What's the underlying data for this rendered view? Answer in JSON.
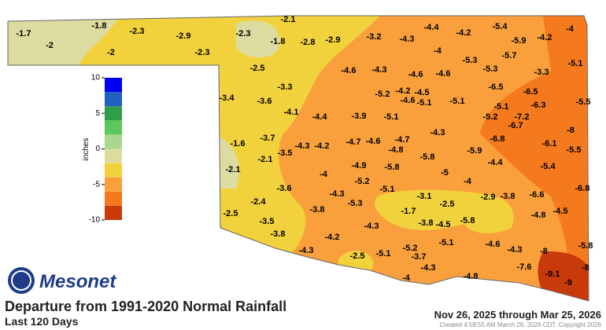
{
  "logo": "Mesonet",
  "title": "Departure from 1991-2020 Normal Rainfall",
  "subtitle": "Last 120 Days",
  "date_range": "Nov 26, 2025 through Mar 25, 2026",
  "created": "Created 4:58:55 AM March 26, 2026 CDT. Copyright 2026",
  "legend": {
    "label": "inches",
    "ylim": [
      10,
      -10
    ],
    "ticks": [
      10,
      5,
      0,
      -5,
      -10
    ],
    "colors": [
      "#0000f0",
      "#2060c0",
      "#2e9e4a",
      "#5cc85c",
      "#a8d890",
      "#dcdca0",
      "#f2d23c",
      "#f9a03c",
      "#f57a1e",
      "#c83a0a"
    ]
  },
  "stations": [
    -1.7,
    -2.0,
    -1.8,
    -2.3,
    -2.0,
    -2.9,
    -2.3,
    -2.3,
    -2.1,
    -1.8,
    -2.8,
    -2.9,
    -3.2,
    -4.3,
    -4.4,
    -4.2,
    -5.4,
    -4.0,
    -5.9,
    -4.2,
    -4.0,
    -5.3,
    -5.7,
    -5.1,
    -2.5,
    -4.6,
    -4.3,
    -4.6,
    -4.6,
    -5.3,
    -3.3,
    -3.3,
    -6.5,
    -6.5,
    -5.2,
    -4.2,
    -4.5,
    -4.6,
    -5.1,
    -5.1,
    -5.1,
    -6.3,
    -5.5,
    -3.4,
    -3.6,
    -4.1,
    -4.4,
    -3.9,
    -5.1,
    -5.2,
    -7.2,
    -6.7,
    -8.0,
    -4.3,
    -4.7,
    -4.6,
    -4.7,
    -4.8,
    -6.8,
    -6.1,
    -5.5,
    -1.6,
    -3.7,
    -4.3,
    -4.2,
    -2.1,
    -3.5,
    -5.9,
    -5.8,
    -2.1,
    -4.0,
    -4.9,
    -5.8,
    -5.0,
    -4.4,
    -5.4,
    -4.0,
    -5.2,
    -3.6,
    -5.1,
    -4.3,
    -3.1,
    -2.9,
    -3.8,
    -6.6,
    -6.8,
    -2.4,
    -5.3,
    -2.5,
    -2.5,
    -3.8,
    -1.7,
    -4.8,
    -4.5,
    -3.5,
    -5.8,
    -3.8,
    -4.5,
    -3.8,
    -4.2,
    -4.3,
    -4.6,
    -4.3,
    -8.0,
    -5.8,
    -4.3,
    -2.5,
    -5.1,
    -5.2,
    -5.1,
    -3.7,
    -4.3,
    -7.6,
    -9.1,
    -8.0,
    -9.0,
    -4.0,
    -4.8
  ]
}
